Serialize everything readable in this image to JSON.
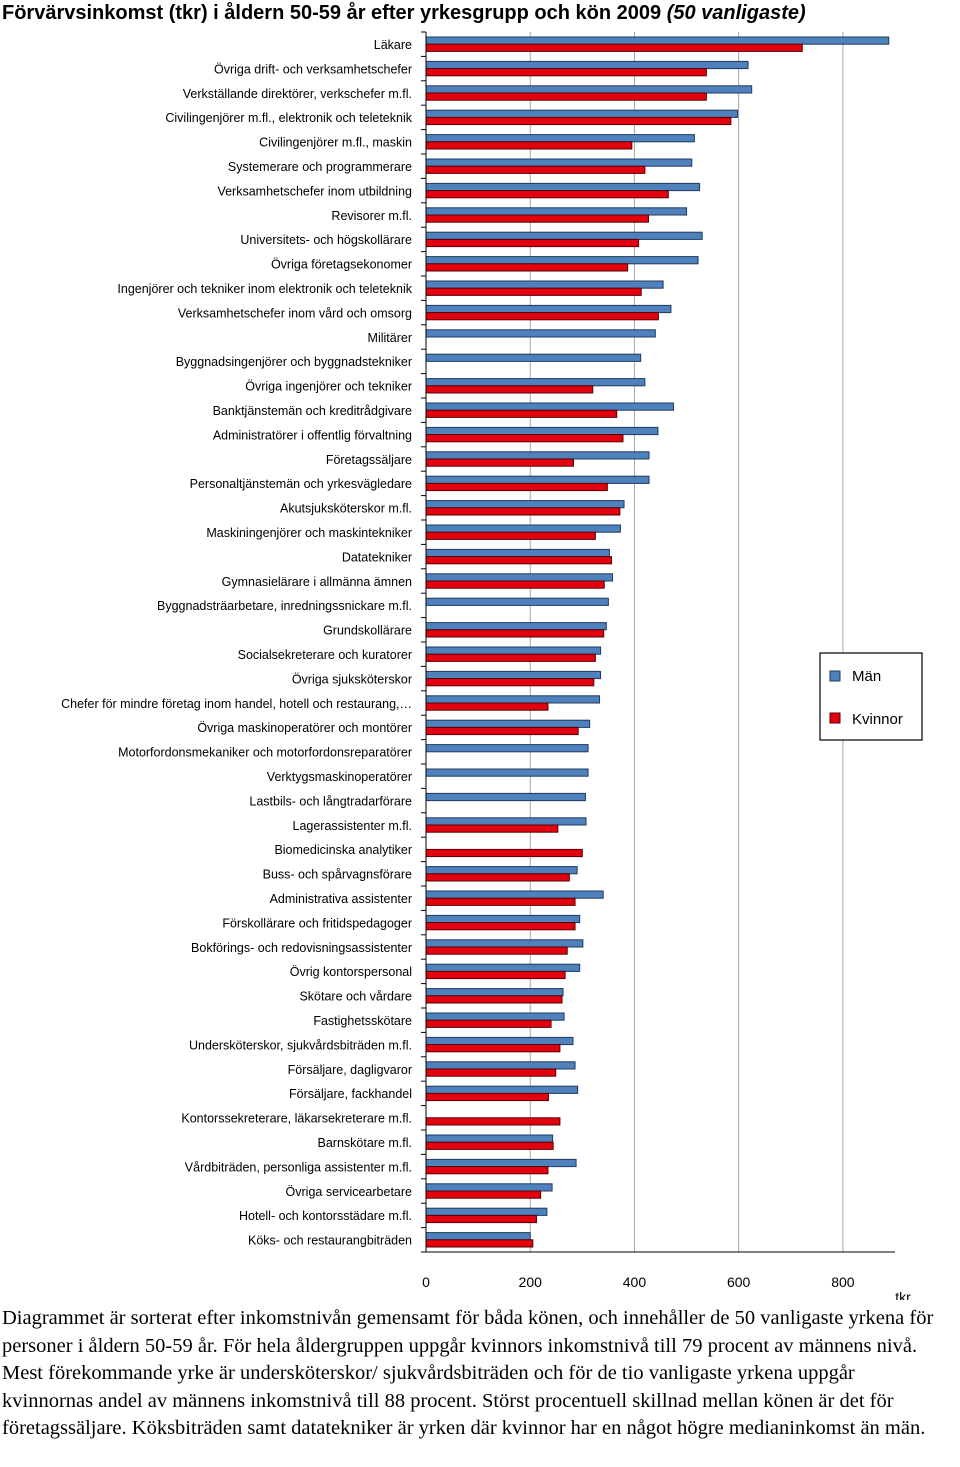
{
  "chart_data": {
    "type": "bar",
    "orientation": "horizontal",
    "title": "Förvärvsinkomst (tkr) i åldern 50-59 år efter yrkesgrupp och kön 2009",
    "subtitle": "(50 vanligaste)",
    "xlabel": "tkr",
    "xlim": [
      0,
      900
    ],
    "xticks": [
      0,
      200,
      400,
      600,
      800
    ],
    "grid": "vertical",
    "legend_position": "right",
    "colors": {
      "men": "#4f81bd",
      "women": "#e3000f",
      "men_border": "#1f3a5f",
      "women_border": "#5a0000",
      "grid": "#a6a6a6"
    },
    "categories": [
      "Läkare",
      "Övriga drift- och verksamhetschefer",
      "Verkställande direktörer, verkschefer m.fl.",
      "Civilingenjörer m.fl., elektronik och teleteknik",
      "Civilingenjörer m.fl., maskin",
      "Systemerare och programmerare",
      "Verksamhetschefer inom utbildning",
      "Revisorer m.fl.",
      "Universitets- och högskollärare",
      "Övriga företagsekonomer",
      "Ingenjörer och tekniker inom elektronik och teleteknik",
      "Verksamhetschefer inom vård och omsorg",
      "Militärer",
      "Byggnadsingenjörer och byggnadstekniker",
      "Övriga ingenjörer och tekniker",
      "Banktjänstemän och kreditrådgivare",
      "Administratörer i offentlig förvaltning",
      "Företagssäljare",
      "Personaltjänstemän och yrkesvägledare",
      "Akutsjuksköterskor m.fl.",
      "Maskiningenjörer och maskintekniker",
      "Datatekniker",
      "Gymnasielärare i allmänna ämnen",
      "Byggnadsträarbetare, inredningssnickare m.fl.",
      "Grundskollärare",
      "Socialsekreterare och kuratorer",
      "Övriga sjuksköterskor",
      "Chefer för mindre företag inom handel, hotell och restaurang,…",
      "Övriga maskinoperatörer och montörer",
      "Motorfordonsmekaniker och motorfordonsreparatörer",
      "Verktygsmaskinoperatörer",
      "Lastbils- och långtradarförare",
      "Lagerassistenter m.fl.",
      "Biomedicinska analytiker",
      "Buss- och spårvagnsförare",
      "Administrativa assistenter",
      "Förskollärare och fritidspedagoger",
      "Bokförings- och redovisningsassistenter",
      "Övrig kontorspersonal",
      "Skötare och vårdare",
      "Fastighetsskötare",
      "Undersköterskor, sjukvårdsbiträden m.fl.",
      "Försäljare, dagligvaror",
      "Försäljare, fackhandel",
      "Kontorssekreterare, läkarsekreterare m.fl.",
      "Barnskötare m.fl.",
      "Vårdbiträden, personliga assistenter m.fl.",
      "Övriga servicearbetare",
      "Hotell- och kontorsstädare m.fl.",
      "Köks- och restaurangbiträden"
    ],
    "series": [
      {
        "name": "Män",
        "values": [
          888,
          618,
          625,
          598,
          515,
          510,
          525,
          500,
          530,
          522,
          455,
          470,
          440,
          412,
          420,
          475,
          445,
          428,
          428,
          380,
          373,
          352,
          358,
          350,
          346,
          335,
          335,
          333,
          314,
          311,
          311,
          306,
          307,
          null,
          290,
          340,
          295,
          301,
          295,
          263,
          265,
          282,
          286,
          291,
          null,
          243,
          288,
          242,
          232,
          200
        ]
      },
      {
        "name": "Kvinnor",
        "values": [
          722,
          538,
          538,
          585,
          395,
          420,
          465,
          427,
          408,
          387,
          413,
          446,
          null,
          null,
          320,
          366,
          378,
          283,
          348,
          372,
          325,
          356,
          342,
          null,
          341,
          325,
          322,
          234,
          292,
          null,
          null,
          null,
          253,
          300,
          275,
          286,
          286,
          271,
          267,
          261,
          240,
          257,
          249,
          235,
          257,
          244,
          234,
          220,
          212,
          205
        ]
      }
    ]
  },
  "legend": {
    "men_label": "Män",
    "women_label": "Kvinnor"
  },
  "caption": "Diagrammet är sorterat efter inkomstnivån gemensamt för båda könen, och innehåller de 50 vanligaste yrkena för personer i åldern 50-59 år. För hela åldergruppen uppgår kvinnors inkomstnivå till 79 procent av männens nivå. Mest förekommande yrke är undersköterskor/ sjukvårdsbiträden och för de tio vanligaste yrkena uppgår kvinnornas andel av männens inkomstnivå till 88 procent. Störst procentuell skillnad mellan könen är det för företagssäljare. Köksbiträden samt datatekniker är yrken där kvinnor har en något högre medianinkomst än män."
}
